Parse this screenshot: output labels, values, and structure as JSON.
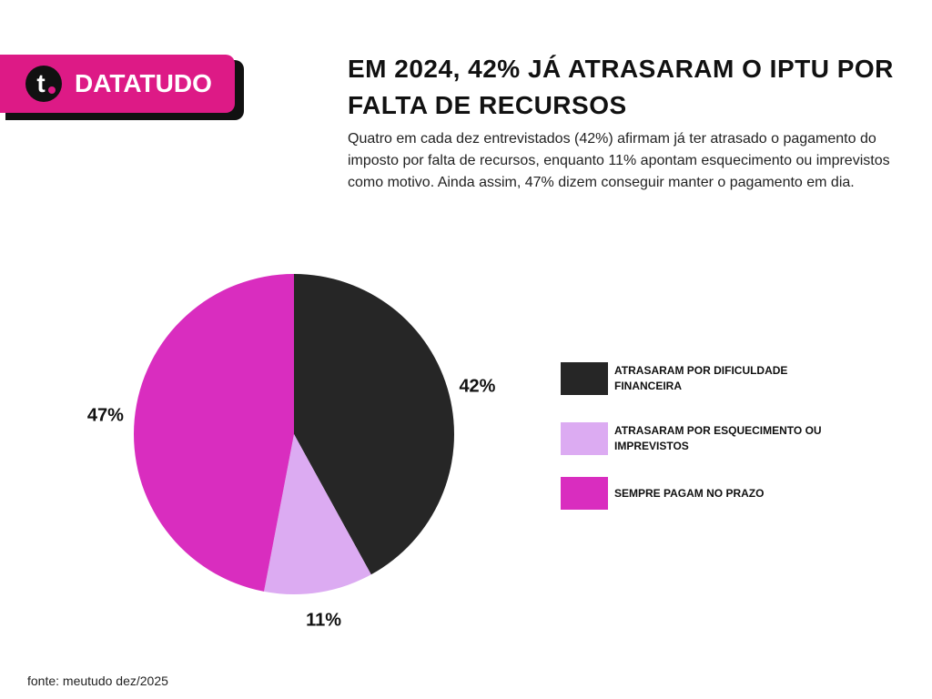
{
  "brand": {
    "logo": "t",
    "name": "DATATUDO"
  },
  "source": "fonte: meutudo dez/2025",
  "chart_data": {
    "type": "pie",
    "title": "EM 2024, 42% JÁ ATRASARAM O IPTU POR FALTA DE RECURSOS",
    "subtitle": "Quatro em cada dez entrevistados (42%) afirmam já ter atrasado o pagamento do imposto por falta de recursos, enquanto 11% apontam esquecimento ou imprevistos como motivo. Ainda assim, 47% dizem conseguir manter o pagamento em dia.",
    "categories": [
      "ATRASARAM POR DIFICULDADE FINANCEIRA",
      "ATRASARAM POR ESQUECIMENTO OU IMPREVISTOS",
      "SEMPRE PAGAM NO PRAZO"
    ],
    "values": [
      42,
      11,
      47
    ],
    "value_labels": [
      "42%",
      "11%",
      "47%"
    ],
    "colors": [
      "#262626",
      "#dcabf2",
      "#d92dbf"
    ]
  }
}
